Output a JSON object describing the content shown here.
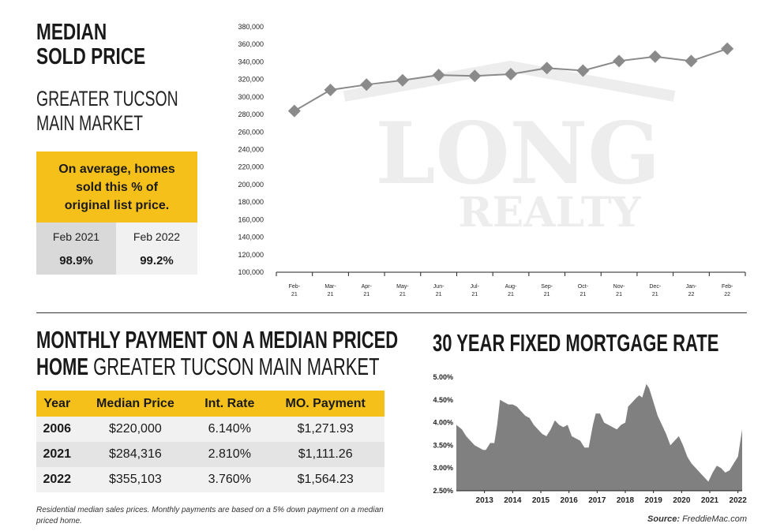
{
  "header": {
    "title": "MEDIAN\nSOLD PRICE",
    "subtitle": "GREATER TUCSON\nMAIN MARKET"
  },
  "list_price_box": {
    "text": "On average, homes\nsold this % of\noriginal list price.",
    "col1_label": "Feb 2021",
    "col1_value": "98.9%",
    "col2_label": "Feb 2022",
    "col2_value": "99.2%"
  },
  "watermark": {
    "line1": "LONG",
    "line2": "REALTY",
    "color": "#ededed"
  },
  "payment": {
    "title_bold_1": "MONTHLY PAYMENT ON A MEDIAN PRICED",
    "title_bold_2": "HOME",
    "title_light": " GREATER TUCSON MAIN MARKET",
    "headers": [
      "Year",
      "Median Price",
      "Int. Rate",
      "MO. Payment"
    ],
    "rows": [
      [
        "2006",
        "$220,000",
        "6.140%",
        "$1,271.93"
      ],
      [
        "2021",
        "$284,316",
        "2.810%",
        "$1,111.26"
      ],
      [
        "2022",
        "$355,103",
        "3.760%",
        "$1,564.23"
      ]
    ],
    "footnote": "Residential median sales prices. Monthly payments are based on a 5% down payment on a median priced home."
  },
  "mortgage": {
    "title": "30 YEAR FIXED MORTGAGE RATE",
    "source_label": "Source:",
    "source_value": " FreddieMac.com"
  },
  "colors": {
    "accent": "#f5c01a",
    "marker": "#8a8a8a",
    "area": "#808080"
  },
  "chart_data": [
    {
      "type": "line",
      "x": [
        "Feb-21",
        "Mar-21",
        "Apr-21",
        "May-21",
        "Jun-21",
        "Jul-21",
        "Aug-21",
        "Sep-21",
        "Oct-21",
        "Nov-21",
        "Dec-21",
        "Jan-22",
        "Feb-22"
      ],
      "x_tick_line1": [
        "Feb-",
        "Mar-",
        "Apr-",
        "May-",
        "Jun-",
        "Jul-",
        "Aug-",
        "Sep-",
        "Oct-",
        "Nov-",
        "Dec-",
        "Jan-",
        "Feb-"
      ],
      "x_tick_line2": [
        "21",
        "21",
        "21",
        "21",
        "21",
        "21",
        "21",
        "21",
        "21",
        "21",
        "21",
        "22",
        "22"
      ],
      "values": [
        284000,
        308000,
        314000,
        319000,
        325000,
        324000,
        326000,
        333000,
        330000,
        341000,
        346000,
        341000,
        355000
      ],
      "ylim": [
        100000,
        380000
      ],
      "yticks": [
        "100,000",
        "120,000",
        "140,000",
        "160,000",
        "180,000",
        "200,000",
        "220,000",
        "240,000",
        "260,000",
        "280,000",
        "300,000",
        "320,000",
        "340,000",
        "360,000",
        "380,000"
      ],
      "grid": false,
      "marker": "diamond"
    },
    {
      "type": "area",
      "x": [
        2012.0,
        2012.1,
        2012.2,
        2012.35,
        2012.5,
        2012.65,
        2012.8,
        2012.95,
        2013.05,
        2013.2,
        2013.35,
        2013.45,
        2013.55,
        2013.7,
        2013.85,
        2014.0,
        2014.15,
        2014.3,
        2014.45,
        2014.6,
        2014.75,
        2014.9,
        2015.05,
        2015.2,
        2015.35,
        2015.5,
        2015.65,
        2015.8,
        2015.95,
        2016.1,
        2016.25,
        2016.4,
        2016.55,
        2016.7,
        2016.85,
        2016.95,
        2017.1,
        2017.25,
        2017.4,
        2017.55,
        2017.7,
        2017.85,
        2018.0,
        2018.1,
        2018.25,
        2018.4,
        2018.5,
        2018.6,
        2018.75,
        2018.85,
        2019.0,
        2019.15,
        2019.3,
        2019.45,
        2019.6,
        2019.75,
        2019.9,
        2020.05,
        2020.2,
        2020.35,
        2020.5,
        2020.65,
        2020.8,
        2020.95,
        2021.1,
        2021.25,
        2021.4,
        2021.55,
        2021.7,
        2021.85,
        2022.0,
        2022.1,
        2022.15
      ],
      "values": [
        3.95,
        3.9,
        3.85,
        3.7,
        3.6,
        3.5,
        3.45,
        3.4,
        3.4,
        3.55,
        3.55,
        3.95,
        4.5,
        4.45,
        4.4,
        4.4,
        4.35,
        4.25,
        4.15,
        4.1,
        3.95,
        3.85,
        3.75,
        3.7,
        3.85,
        4.05,
        3.95,
        3.9,
        3.95,
        3.7,
        3.65,
        3.6,
        3.45,
        3.45,
        3.95,
        4.2,
        4.2,
        4.0,
        3.95,
        3.9,
        3.85,
        3.95,
        4.0,
        4.35,
        4.45,
        4.55,
        4.6,
        4.55,
        4.85,
        4.75,
        4.45,
        4.15,
        3.95,
        3.75,
        3.5,
        3.6,
        3.7,
        3.5,
        3.25,
        3.1,
        3.0,
        2.9,
        2.8,
        2.7,
        2.9,
        3.05,
        3.0,
        2.9,
        2.95,
        3.1,
        3.25,
        3.65,
        3.85
      ],
      "ylim": [
        2.5,
        5.0
      ],
      "yticks": [
        "2.50%",
        "3.00%",
        "3.50%",
        "4.00%",
        "4.50%",
        "5.00%"
      ],
      "xticks": [
        "2013",
        "2014",
        "2015",
        "2016",
        "2017",
        "2018",
        "2019",
        "2020",
        "2021",
        "2022"
      ],
      "grid": false
    }
  ]
}
